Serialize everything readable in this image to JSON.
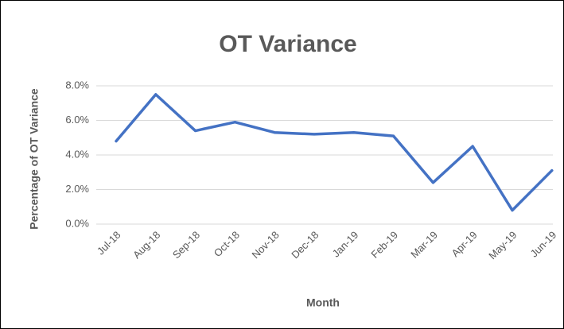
{
  "chart_data": {
    "type": "line",
    "title": "OT Variance",
    "x_label": "Month",
    "y_label": "Percentage of OT Variance",
    "categories": [
      "Jul-18",
      "Aug-18",
      "Sep-18",
      "Oct-18",
      "Nov-18",
      "Dec-18",
      "Jan-19",
      "Feb-19",
      "Mar-19",
      "Apr-19",
      "May-19",
      "Jun-19"
    ],
    "series": [
      {
        "name": "OT Variance",
        "color": "#4472c4",
        "values": [
          4.8,
          7.5,
          5.4,
          5.9,
          5.3,
          5.2,
          5.3,
          5.1,
          2.4,
          4.5,
          0.8,
          3.1
        ]
      }
    ],
    "ylim": [
      0,
      8
    ],
    "yticks": [
      {
        "value": 0,
        "label": "0.0%"
      },
      {
        "value": 2,
        "label": "2.0%"
      },
      {
        "value": 4,
        "label": "4.0%"
      },
      {
        "value": 6,
        "label": "6.0%"
      },
      {
        "value": 8,
        "label": "8.0%"
      }
    ],
    "grid": true
  }
}
